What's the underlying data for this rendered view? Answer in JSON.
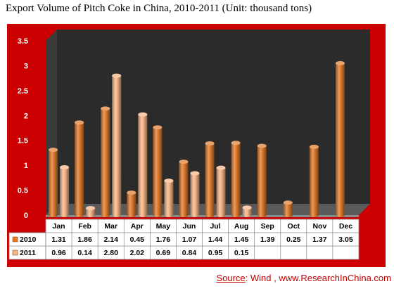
{
  "title": "Export Volume of Pitch Coke in China, 2010-2011 (Unit: thousand tons)",
  "source": {
    "label": "Source",
    "text": ": Wind ,  www.ResearchInChina.com"
  },
  "chart_data": {
    "type": "bar",
    "title": "Export Volume of Pitch Coke in China, 2010-2011 (Unit: thousand tons)",
    "categories": [
      "Jan",
      "Feb",
      "Mar",
      "Apr",
      "May",
      "Jun",
      "Jul",
      "Aug",
      "Sep",
      "Oct",
      "Nov",
      "Dec"
    ],
    "series": [
      {
        "name": "2010",
        "values": [
          1.31,
          1.86,
          2.14,
          0.45,
          1.76,
          1.07,
          1.44,
          1.45,
          1.39,
          0.25,
          1.37,
          3.05
        ],
        "labels": [
          "1.31",
          "1.86",
          "2.14",
          "0.45",
          "1.76",
          "1.07",
          "1.44",
          "1.45",
          "1.39",
          "0.25",
          "1.37",
          "3.05"
        ],
        "color": "#e07b2e"
      },
      {
        "name": "2011",
        "values": [
          0.96,
          0.14,
          2.8,
          2.02,
          0.69,
          0.84,
          0.95,
          0.15,
          null,
          null,
          null,
          null
        ],
        "labels": [
          "0.96",
          "0.14",
          "2.80",
          "2.02",
          "0.69",
          "0.84",
          "0.95",
          "0.15",
          "",
          "",
          "",
          ""
        ],
        "color": "#f6b487"
      }
    ],
    "ylim": [
      0,
      3.5
    ],
    "yticks": [
      "0",
      "0.5",
      "1",
      "1.5",
      "2",
      "2.5",
      "3",
      "3.5"
    ],
    "grid": false,
    "legend": "data-table"
  }
}
